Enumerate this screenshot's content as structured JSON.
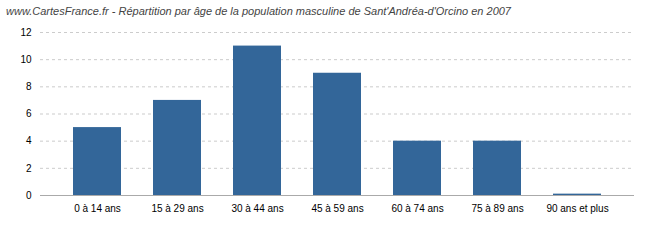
{
  "chart_data": {
    "type": "bar",
    "title": "www.CartesFrance.fr - Répartition par âge de la population masculine de Sant'Andréa-d'Orcino en 2007",
    "categories": [
      "0 à 14 ans",
      "15 à 29 ans",
      "30 à 44 ans",
      "45 à 59 ans",
      "60 à 74 ans",
      "75 à 89 ans",
      "90 ans et plus"
    ],
    "values": [
      5,
      7,
      11,
      9,
      4,
      4,
      0.1
    ],
    "color": "#336699",
    "ylim": [
      0,
      12
    ],
    "yticks": [
      0,
      2,
      4,
      6,
      8,
      10,
      12
    ],
    "grid": true
  }
}
